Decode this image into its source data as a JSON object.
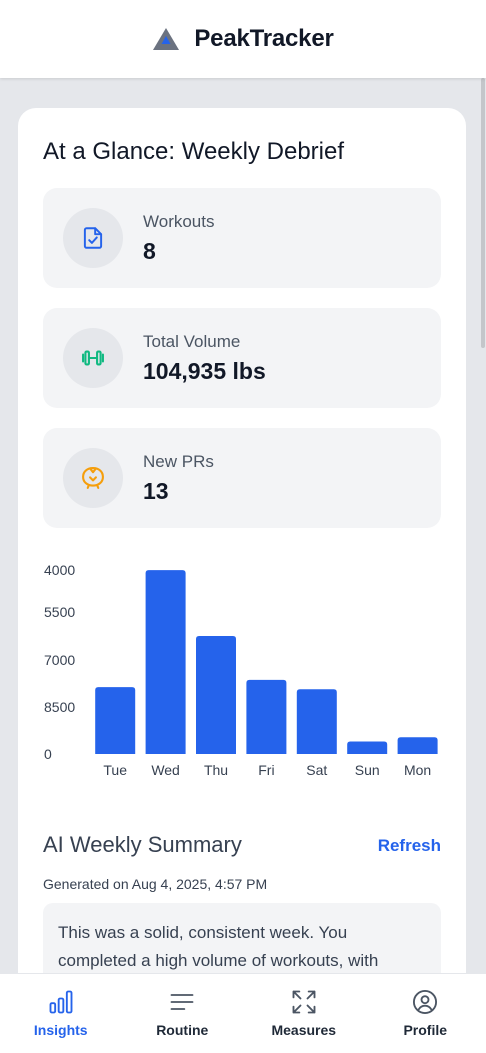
{
  "header": {
    "title": "PeakTracker",
    "logo_icon": "mountain-logo-icon"
  },
  "glance": {
    "title": "At a Glance: Weekly Debrief",
    "stats": [
      {
        "label": "Workouts",
        "value": "8",
        "icon": "document-check-icon",
        "color": "#2563eb"
      },
      {
        "label": "Total Volume",
        "value": "104,935 lbs",
        "icon": "dumbbell-icon",
        "color": "#10b981"
      },
      {
        "label": "New PRs",
        "value": "13",
        "icon": "trophy-badge-icon",
        "color": "#f59e0b"
      }
    ]
  },
  "chart_data": {
    "type": "bar",
    "categories": [
      "Tue",
      "Wed",
      "Thu",
      "Fri",
      "Sat",
      "Sun",
      "Mon"
    ],
    "values": [
      6400,
      17600,
      11300,
      7100,
      6200,
      1200,
      1600
    ],
    "y_tick_labels": [
      "0",
      "8500",
      "7000",
      "5500",
      "4000"
    ],
    "bar_color": "#2563eb",
    "grid": false,
    "legend": "none"
  },
  "ai_summary": {
    "title": "AI Weekly Summary",
    "refresh_label": "Refresh",
    "generated": "Generated on Aug 4, 2025, 4:57 PM",
    "text": "This was a solid, consistent week. You completed a high volume of workouts, with"
  },
  "nav": {
    "items": [
      {
        "label": "Insights",
        "icon": "bar-chart-icon",
        "active": true
      },
      {
        "label": "Routine",
        "icon": "menu-lines-icon",
        "active": false
      },
      {
        "label": "Measures",
        "icon": "expand-arrows-icon",
        "active": false
      },
      {
        "label": "Profile",
        "icon": "user-circle-icon",
        "active": false
      }
    ]
  },
  "colors": {
    "accent": "#2563eb",
    "background": "#e5e7eb",
    "card": "#ffffff"
  }
}
